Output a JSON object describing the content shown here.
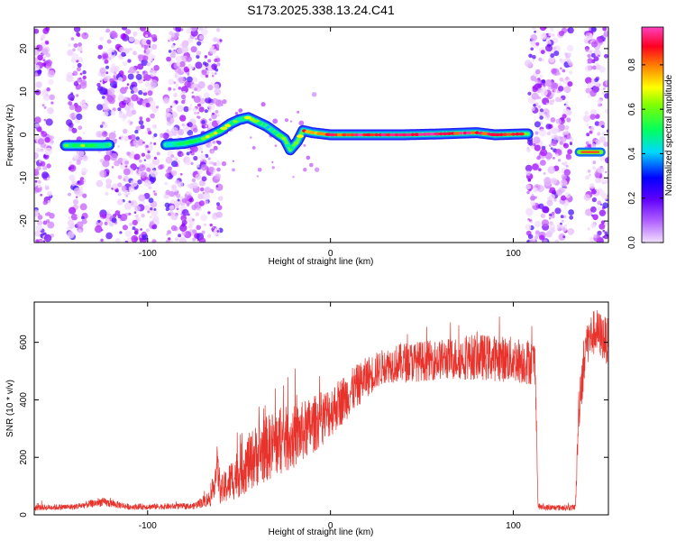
{
  "chart_data": [
    {
      "type": "heatmap",
      "title": "S173.2025.338.13.24.C41",
      "xlabel": "Height of straight line (km)",
      "ylabel": "Frequency (Hz)",
      "xlim": [
        -162,
        152
      ],
      "ylim": [
        -25,
        25
      ],
      "xticks": [
        -100,
        0,
        100
      ],
      "xtick_labels": [
        "-100",
        "0",
        "100"
      ],
      "yticks": [
        -20,
        -10,
        0,
        10,
        20
      ],
      "ytick_labels": [
        "-20",
        "-10",
        "0",
        "10",
        "20"
      ],
      "colorbar": {
        "label": "Normalized spectral amplitude",
        "range": [
          0,
          0.97
        ],
        "ticks": [
          0.0,
          0.2,
          0.4,
          0.6,
          0.8
        ],
        "tick_labels": [
          "0.0",
          "0.2",
          "0.4",
          "0.6",
          "0.8"
        ],
        "colors": [
          "#f3e0ff",
          "#a000ff",
          "#2020ff",
          "#00e0ff",
          "#00ff40",
          "#ffff00",
          "#ff8000",
          "#ff0040",
          "#ff40c0"
        ]
      },
      "ridge": {
        "x": [
          -145,
          -135,
          -125,
          -120,
          -90,
          -80,
          -70,
          -60,
          -55,
          -50,
          -45,
          -40,
          -35,
          -30,
          -25,
          -22,
          -18,
          -15,
          -10,
          0,
          20,
          40,
          60,
          80,
          90,
          105,
          108
        ],
        "freq": [
          -2.5,
          -2.5,
          -2.5,
          -2.3,
          -2.3,
          -2,
          -1,
          1,
          2.5,
          3.5,
          4,
          3,
          2,
          0.5,
          -1,
          -3.5,
          -1.5,
          1,
          0.5,
          0,
          0,
          0,
          0.2,
          0.5,
          0,
          0.2,
          0.2
        ],
        "amp": [
          0.45,
          0.55,
          0.5,
          0.45,
          0.35,
          0.5,
          0.55,
          0.6,
          0.55,
          0.45,
          0.6,
          0.5,
          0.4,
          0.45,
          0.55,
          0.45,
          0.55,
          0.8,
          0.7,
          0.85,
          0.9,
          0.85,
          0.9,
          0.85,
          0.8,
          0.9,
          0.7
        ]
      },
      "segment2": {
        "x": [
          136,
          148
        ],
        "freq": [
          -4,
          -4
        ],
        "amp": 0.8
      },
      "noise_regions": [
        [
          -162,
          -152
        ],
        [
          -143,
          -134
        ],
        [
          -127,
          -95
        ],
        [
          -90,
          -60
        ],
        [
          108,
          132
        ],
        [
          140,
          152
        ]
      ]
    },
    {
      "type": "line",
      "xlabel": "Height of straight line (km)",
      "ylabel": "SNR (10 * v/v)",
      "xlim": [
        -162,
        152
      ],
      "ylim": [
        0,
        740
      ],
      "xticks": [
        -100,
        0,
        100
      ],
      "xtick_labels": [
        "-100",
        "0",
        "100"
      ],
      "yticks": [
        0,
        200,
        400,
        600
      ],
      "ytick_labels": [
        "0",
        "200",
        "400",
        "600"
      ],
      "color": "#e8332c",
      "envelope": {
        "x": [
          -162,
          -140,
          -125,
          -110,
          -75,
          -65,
          -62,
          -60,
          -50,
          -40,
          -30,
          -20,
          -10,
          0,
          10,
          20,
          30,
          40,
          60,
          80,
          100,
          112,
          113.5,
          117,
          133,
          134,
          136,
          140,
          145,
          152
        ],
        "mean": [
          25,
          28,
          45,
          28,
          30,
          60,
          170,
          80,
          150,
          210,
          250,
          270,
          310,
          360,
          420,
          480,
          520,
          530,
          540,
          550,
          540,
          530,
          30,
          25,
          25,
          30,
          400,
          600,
          640,
          600
        ],
        "spread": [
          10,
          10,
          15,
          10,
          10,
          30,
          70,
          50,
          90,
          110,
          120,
          110,
          100,
          90,
          80,
          70,
          60,
          70,
          70,
          80,
          80,
          80,
          10,
          10,
          10,
          10,
          100,
          80,
          80,
          80
        ]
      }
    }
  ]
}
